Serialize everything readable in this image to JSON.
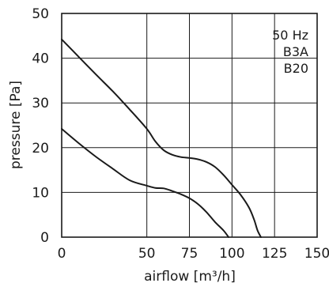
{
  "chart_data": {
    "type": "line",
    "title": "",
    "xlabel": "airflow [m³/h]",
    "ylabel": "pressure [Pa]",
    "xlim": [
      0,
      150
    ],
    "ylim": [
      0,
      50
    ],
    "x_ticks": [
      "0",
      "50",
      "75",
      "100",
      "125",
      "150"
    ],
    "y_ticks": [
      "0",
      "10",
      "20",
      "30",
      "40",
      "50"
    ],
    "grid": true,
    "annotations": [
      "50 Hz",
      "B3A",
      "B20"
    ],
    "series": [
      {
        "x": [
          0,
          10,
          20,
          30,
          40,
          50,
          55,
          60,
          65,
          70,
          75,
          80,
          85,
          90,
          95,
          100,
          105,
          110,
          113,
          115,
          117
        ],
        "values": [
          44.2,
          40.3,
          36.4,
          32.6,
          28.5,
          24.2,
          21.4,
          19.4,
          18.4,
          17.9,
          17.7,
          17.4,
          16.8,
          15.7,
          13.9,
          11.7,
          9.5,
          6.6,
          3.9,
          1.5,
          0
        ]
      },
      {
        "x": [
          0,
          10,
          20,
          30,
          40,
          50,
          55,
          60,
          65,
          70,
          75,
          80,
          85,
          90,
          95,
          98
        ],
        "values": [
          24.2,
          21.0,
          18.0,
          15.3,
          12.7,
          11.5,
          11.0,
          10.9,
          10.3,
          9.6,
          8.7,
          7.4,
          5.6,
          3.4,
          1.5,
          0
        ]
      }
    ]
  }
}
